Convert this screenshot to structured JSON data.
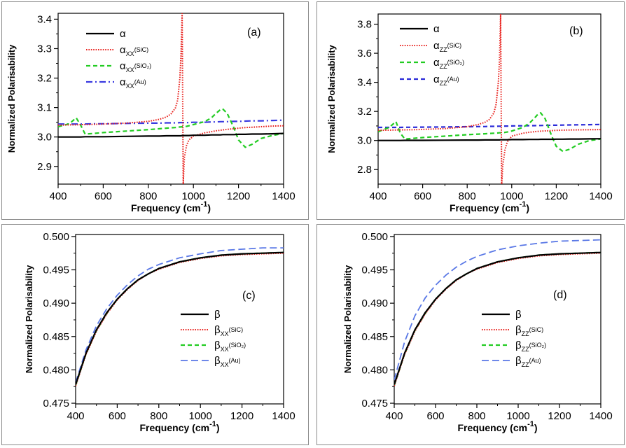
{
  "chart_data": [
    {
      "type": "line",
      "panel_label": "(a)",
      "xlabel": "Frequency (cm",
      "xlabel_sup": "-1",
      "xlabel_tail": ")",
      "ylabel": "Normalized Polarisability",
      "xlim": [
        400,
        1400
      ],
      "ylim": [
        2.84,
        3.42
      ],
      "xticks": [
        "400",
        "600",
        "800",
        "1000",
        "1200",
        "1400"
      ],
      "yticks": [
        "2.9",
        "3.0",
        "3.1",
        "3.2",
        "3.3",
        "3.4"
      ],
      "ytick_values": [
        2.9,
        3.0,
        3.1,
        3.2,
        3.3,
        3.4
      ],
      "legend": [
        {
          "base": "α",
          "sub": "",
          "paren": "",
          "style": "solid",
          "color": "#000000"
        },
        {
          "base": "α",
          "sub": "XX",
          "paren": "(SiC)",
          "style": "dotted",
          "color": "#e8201c"
        },
        {
          "base": "α",
          "sub": "XX",
          "paren": "(SiO₂)",
          "style": "dashed",
          "color": "#22cc22"
        },
        {
          "base": "α",
          "sub": "XX",
          "paren": "(Au)",
          "style": "dashdot",
          "color": "#3a3ae0"
        }
      ],
      "x": [
        400,
        450,
        480,
        500,
        520,
        560,
        600,
        700,
        800,
        850,
        880,
        900,
        920,
        930,
        940,
        945,
        950,
        955,
        960,
        970,
        980,
        1000,
        1050,
        1080,
        1100,
        1120,
        1130,
        1150,
        1180,
        1200,
        1230,
        1260,
        1300,
        1350,
        1400
      ],
      "series": [
        {
          "values": [
            3.0,
            3.0,
            3.0,
            3.0,
            3.001,
            3.001,
            3.001,
            3.002,
            3.003,
            3.003,
            3.004,
            3.004,
            3.004,
            3.004,
            3.004,
            3.004,
            3.005,
            3.005,
            3.005,
            3.005,
            3.005,
            3.006,
            3.006,
            3.007,
            3.007,
            3.007,
            3.008,
            3.008,
            3.008,
            3.009,
            3.009,
            3.01,
            3.01,
            3.011,
            3.012
          ]
        },
        {
          "values": [
            3.04,
            3.041,
            3.041,
            3.042,
            3.042,
            3.043,
            3.044,
            3.047,
            3.053,
            3.06,
            3.068,
            3.078,
            3.098,
            3.125,
            3.2,
            3.28,
            3.42,
            2.84,
            2.93,
            2.972,
            2.99,
            3.003,
            3.014,
            3.018,
            3.021,
            3.023,
            3.024,
            3.026,
            3.028,
            3.03,
            3.032,
            3.033,
            3.035,
            3.037,
            3.038
          ]
        },
        {
          "values": [
            3.035,
            3.045,
            3.065,
            3.04,
            3.01,
            3.012,
            3.015,
            3.02,
            3.025,
            3.028,
            3.03,
            3.031,
            3.032,
            3.033,
            3.034,
            3.034,
            3.035,
            3.035,
            3.035,
            3.036,
            3.038,
            3.042,
            3.052,
            3.065,
            3.08,
            3.093,
            3.095,
            3.08,
            3.03,
            2.99,
            2.965,
            2.975,
            2.995,
            3.005,
            3.012
          ]
        },
        {
          "values": [
            3.044,
            3.044,
            3.044,
            3.044,
            3.044,
            3.045,
            3.045,
            3.046,
            3.047,
            3.047,
            3.048,
            3.048,
            3.048,
            3.048,
            3.049,
            3.049,
            3.049,
            3.049,
            3.049,
            3.049,
            3.049,
            3.05,
            3.05,
            3.051,
            3.051,
            3.052,
            3.052,
            3.052,
            3.053,
            3.053,
            3.054,
            3.055,
            3.055,
            3.056,
            3.057
          ]
        }
      ]
    },
    {
      "type": "line",
      "panel_label": "(b)",
      "xlabel": "Frequency (cm",
      "xlabel_sup": "-1",
      "xlabel_tail": ")",
      "ylabel": "Normalized Polarisability",
      "xlim": [
        400,
        1400
      ],
      "ylim": [
        2.7,
        3.87
      ],
      "xticks": [
        "400",
        "600",
        "800",
        "1000",
        "1200",
        "1400"
      ],
      "yticks": [
        "2.8",
        "3.0",
        "3.2",
        "3.4",
        "3.6",
        "3.8"
      ],
      "ytick_values": [
        2.8,
        3.0,
        3.2,
        3.4,
        3.6,
        3.8
      ],
      "legend": [
        {
          "base": "α",
          "sub": "",
          "paren": "",
          "style": "solid",
          "color": "#000000"
        },
        {
          "base": "α",
          "sub": "ZZ",
          "paren": "(SiC)",
          "style": "dotted",
          "color": "#e8201c"
        },
        {
          "base": "α",
          "sub": "ZZ",
          "paren": "(SiO₂)",
          "style": "dashed",
          "color": "#22cc22"
        },
        {
          "base": "α",
          "sub": "ZZ",
          "paren": "(Au)",
          "style": "dashed",
          "color": "#2a2ad8"
        }
      ],
      "x": [
        400,
        450,
        480,
        500,
        520,
        560,
        600,
        700,
        800,
        850,
        880,
        900,
        920,
        930,
        940,
        945,
        950,
        955,
        960,
        970,
        980,
        1000,
        1050,
        1080,
        1100,
        1120,
        1130,
        1150,
        1180,
        1200,
        1230,
        1260,
        1300,
        1350,
        1400
      ],
      "series": [
        {
          "values": [
            3.0,
            3.0,
            3.0,
            3.0,
            3.001,
            3.001,
            3.001,
            3.002,
            3.003,
            3.003,
            3.004,
            3.004,
            3.004,
            3.004,
            3.004,
            3.004,
            3.005,
            3.005,
            3.005,
            3.005,
            3.005,
            3.006,
            3.006,
            3.007,
            3.007,
            3.007,
            3.008,
            3.008,
            3.008,
            3.009,
            3.009,
            3.01,
            3.01,
            3.011,
            3.012
          ]
        },
        {
          "values": [
            3.07,
            3.071,
            3.072,
            3.073,
            3.073,
            3.074,
            3.076,
            3.082,
            3.095,
            3.11,
            3.125,
            3.145,
            3.19,
            3.25,
            3.4,
            3.55,
            3.87,
            2.7,
            2.83,
            2.94,
            2.99,
            3.03,
            3.05,
            3.057,
            3.06,
            3.063,
            3.064,
            3.066,
            3.068,
            3.07,
            3.071,
            3.072,
            3.073,
            3.074,
            3.075
          ]
        },
        {
          "values": [
            3.06,
            3.09,
            3.13,
            3.05,
            3.01,
            3.015,
            3.02,
            3.03,
            3.04,
            3.044,
            3.046,
            3.048,
            3.05,
            3.051,
            3.052,
            3.053,
            3.053,
            3.054,
            3.054,
            3.056,
            3.058,
            3.065,
            3.09,
            3.12,
            3.15,
            3.185,
            3.19,
            3.15,
            3.03,
            2.96,
            2.925,
            2.94,
            2.975,
            3.0,
            3.01
          ]
        },
        {
          "values": [
            3.09,
            3.09,
            3.09,
            3.09,
            3.091,
            3.091,
            3.092,
            3.093,
            3.095,
            3.096,
            3.096,
            3.097,
            3.097,
            3.097,
            3.098,
            3.098,
            3.098,
            3.098,
            3.098,
            3.099,
            3.099,
            3.1,
            3.101,
            3.102,
            3.102,
            3.103,
            3.103,
            3.104,
            3.105,
            3.105,
            3.106,
            3.107,
            3.108,
            3.109,
            3.11
          ]
        }
      ]
    },
    {
      "type": "line",
      "panel_label": "(c)",
      "xlabel": "Frequency (cm",
      "xlabel_sup": "-1",
      "xlabel_tail": ")",
      "ylabel": "Normalized Polarisability",
      "xlim": [
        400,
        1400
      ],
      "ylim": [
        0.4749,
        0.5003
      ],
      "xticks": [
        "400",
        "600",
        "800",
        "1000",
        "1200",
        "1400"
      ],
      "yticks": [
        "0.475",
        "0.480",
        "0.485",
        "0.490",
        "0.495",
        "0.500"
      ],
      "ytick_values": [
        0.475,
        0.48,
        0.485,
        0.49,
        0.495,
        0.5
      ],
      "legend": [
        {
          "base": "β",
          "sub": "",
          "paren": "",
          "style": "solid",
          "color": "#000000"
        },
        {
          "base": "β",
          "sub": "XX",
          "paren": "(SiC)",
          "style": "dotted",
          "color": "#e8201c"
        },
        {
          "base": "β",
          "sub": "XX",
          "paren": "(SiO₂)",
          "style": "dashed",
          "color": "#22cc22"
        },
        {
          "base": "β",
          "sub": "XX",
          "paren": "(Au)",
          "style": "longdash",
          "color": "#5a78e6"
        }
      ],
      "x": [
        400,
        450,
        500,
        550,
        600,
        650,
        700,
        750,
        800,
        900,
        1000,
        1100,
        1200,
        1300,
        1400
      ],
      "series": [
        {
          "values": [
            0.4778,
            0.4825,
            0.486,
            0.4886,
            0.4906,
            0.4922,
            0.4935,
            0.4944,
            0.4952,
            0.4962,
            0.4968,
            0.4972,
            0.4974,
            0.4975,
            0.4976
          ]
        },
        {
          "values": [
            0.4776,
            0.4823,
            0.4858,
            0.4884,
            0.4905,
            0.4921,
            0.4934,
            0.4944,
            0.4951,
            0.4961,
            0.4967,
            0.4971,
            0.4973,
            0.4974,
            0.4975
          ]
        },
        {
          "values": [
            0.4777,
            0.4824,
            0.4859,
            0.4885,
            0.4906,
            0.4922,
            0.4935,
            0.4944,
            0.4952,
            0.4962,
            0.4968,
            0.4972,
            0.4974,
            0.4975,
            0.4976
          ]
        },
        {
          "values": [
            0.4781,
            0.483,
            0.4866,
            0.4892,
            0.4912,
            0.4928,
            0.4941,
            0.4951,
            0.4958,
            0.4968,
            0.4974,
            0.4979,
            0.4981,
            0.4983,
            0.4983
          ]
        }
      ]
    },
    {
      "type": "line",
      "panel_label": "(d)",
      "xlabel": "Frequency (cm",
      "xlabel_sup": "-1",
      "xlabel_tail": ")",
      "ylabel": "Normalized Polarisability",
      "xlim": [
        400,
        1400
      ],
      "ylim": [
        0.4749,
        0.5003
      ],
      "xticks": [
        "400",
        "600",
        "800",
        "1000",
        "1200",
        "1400"
      ],
      "yticks": [
        "0.475",
        "0.480",
        "0.485",
        "0.490",
        "0.495",
        "0.500"
      ],
      "ytick_values": [
        0.475,
        0.48,
        0.485,
        0.49,
        0.495,
        0.5
      ],
      "legend": [
        {
          "base": "β",
          "sub": "",
          "paren": "",
          "style": "solid",
          "color": "#000000"
        },
        {
          "base": "β",
          "sub": "ZZ",
          "paren": "(SiC)",
          "style": "dotted",
          "color": "#e8201c"
        },
        {
          "base": "β",
          "sub": "ZZ",
          "paren": "(SiO₂)",
          "style": "dashed",
          "color": "#22cc22"
        },
        {
          "base": "β",
          "sub": "ZZ",
          "paren": "(Au)",
          "style": "longdash",
          "color": "#5a78e6"
        }
      ],
      "x": [
        400,
        450,
        500,
        550,
        600,
        650,
        700,
        750,
        800,
        900,
        1000,
        1100,
        1200,
        1300,
        1400
      ],
      "series": [
        {
          "values": [
            0.4778,
            0.4825,
            0.486,
            0.4886,
            0.4906,
            0.4922,
            0.4935,
            0.4944,
            0.4952,
            0.4962,
            0.4968,
            0.4972,
            0.4974,
            0.4975,
            0.4976
          ]
        },
        {
          "values": [
            0.4776,
            0.4823,
            0.4858,
            0.4884,
            0.4905,
            0.4921,
            0.4934,
            0.4944,
            0.4951,
            0.4961,
            0.4967,
            0.4971,
            0.4973,
            0.4974,
            0.4975
          ]
        },
        {
          "values": [
            0.4777,
            0.4824,
            0.4859,
            0.4885,
            0.4906,
            0.4922,
            0.4935,
            0.4944,
            0.4952,
            0.4962,
            0.4968,
            0.4972,
            0.4974,
            0.4975,
            0.4976
          ]
        },
        {
          "values": [
            0.4785,
            0.4842,
            0.4881,
            0.4908,
            0.4927,
            0.4942,
            0.4954,
            0.4963,
            0.497,
            0.498,
            0.4986,
            0.499,
            0.4993,
            0.4994,
            0.4995
          ]
        }
      ]
    }
  ]
}
